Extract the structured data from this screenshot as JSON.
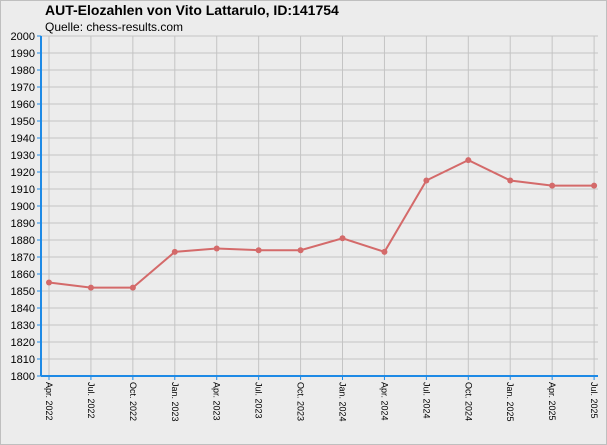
{
  "chart": {
    "title": "AUT-Elozahlen von Vito Lattarulo, ID:141754",
    "subtitle": "Quelle: chess-results.com"
  },
  "colors": {
    "line": "#d46a6a",
    "axis": "#1e8ae6",
    "grid": "#c4c4c4",
    "background": "#ececec"
  },
  "chart_data": {
    "type": "line",
    "title": "AUT-Elozahlen von Vito Lattarulo, ID:141754",
    "subtitle": "Quelle: chess-results.com",
    "xlabel": "",
    "ylabel": "",
    "ylim": [
      1800,
      2000
    ],
    "ytick_step": 10,
    "grid": true,
    "categories": [
      "Apr. 2022",
      "Jul. 2022",
      "Oct. 2022",
      "Jan. 2023",
      "Apr. 2023",
      "Jul. 2023",
      "Oct. 2023",
      "Jan. 2024",
      "Apr. 2024",
      "Jul. 2024",
      "Oct. 2024",
      "Jan. 2025",
      "Apr. 2025",
      "Jul. 2025"
    ],
    "series": [
      {
        "values": [
          1855,
          1852,
          1852,
          1873,
          1875,
          1874,
          1874,
          1881,
          1873,
          1915,
          1927,
          1915,
          1912,
          1912
        ]
      }
    ]
  }
}
